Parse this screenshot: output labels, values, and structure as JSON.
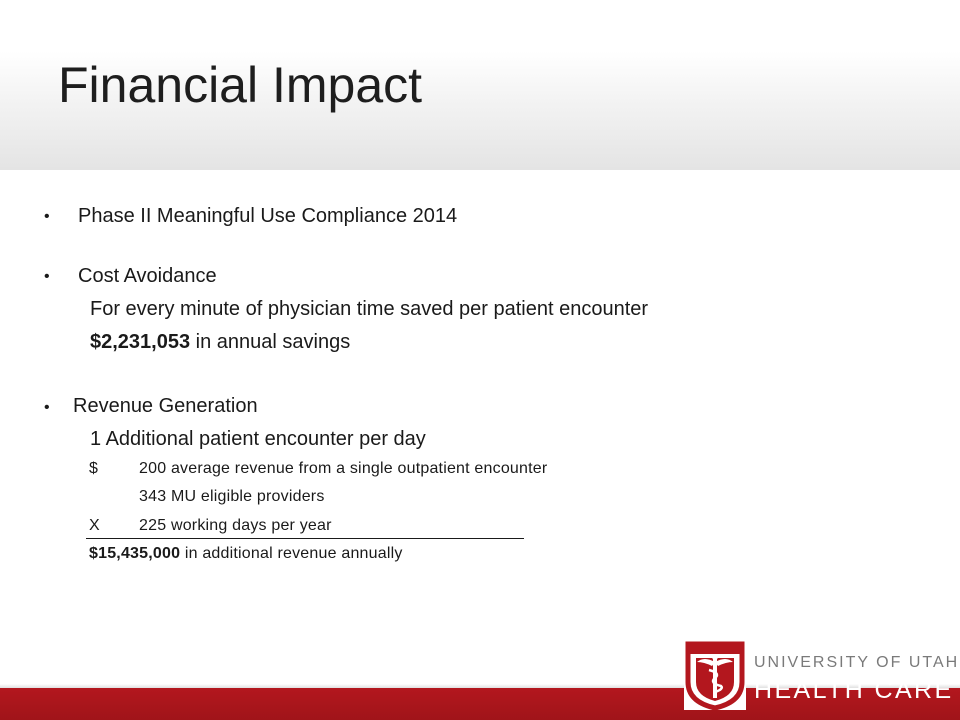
{
  "slide": {
    "title": "Financial Impact",
    "bullets": [
      {
        "text": "Phase II Meaningful Use Compliance 2014"
      },
      {
        "text": "Cost Avoidance",
        "line1": "For every minute of physician time saved per patient encounter",
        "savings_amount": "$2,231,053",
        "savings_rest": " in annual savings"
      },
      {
        "text": "Revenue Generation",
        "line1": "1 Additional patient encounter per day",
        "calc": [
          {
            "symbol": "$",
            "text": "200 average revenue from a single outpatient encounter"
          },
          {
            "symbol": "",
            "text": "343 MU eligible providers"
          },
          {
            "symbol": "X",
            "text": "225 working days per year"
          }
        ],
        "total_amount": "$15,435,000",
        "total_rest": " in additional revenue annually"
      }
    ],
    "bullet_char": "•"
  },
  "footer": {
    "logo_line1": "UNIVERSITY OF UTAH",
    "logo_line2": "HEALTH CARE",
    "logo_icon": "caduceus-icon",
    "bar_color": "#b3171e"
  }
}
